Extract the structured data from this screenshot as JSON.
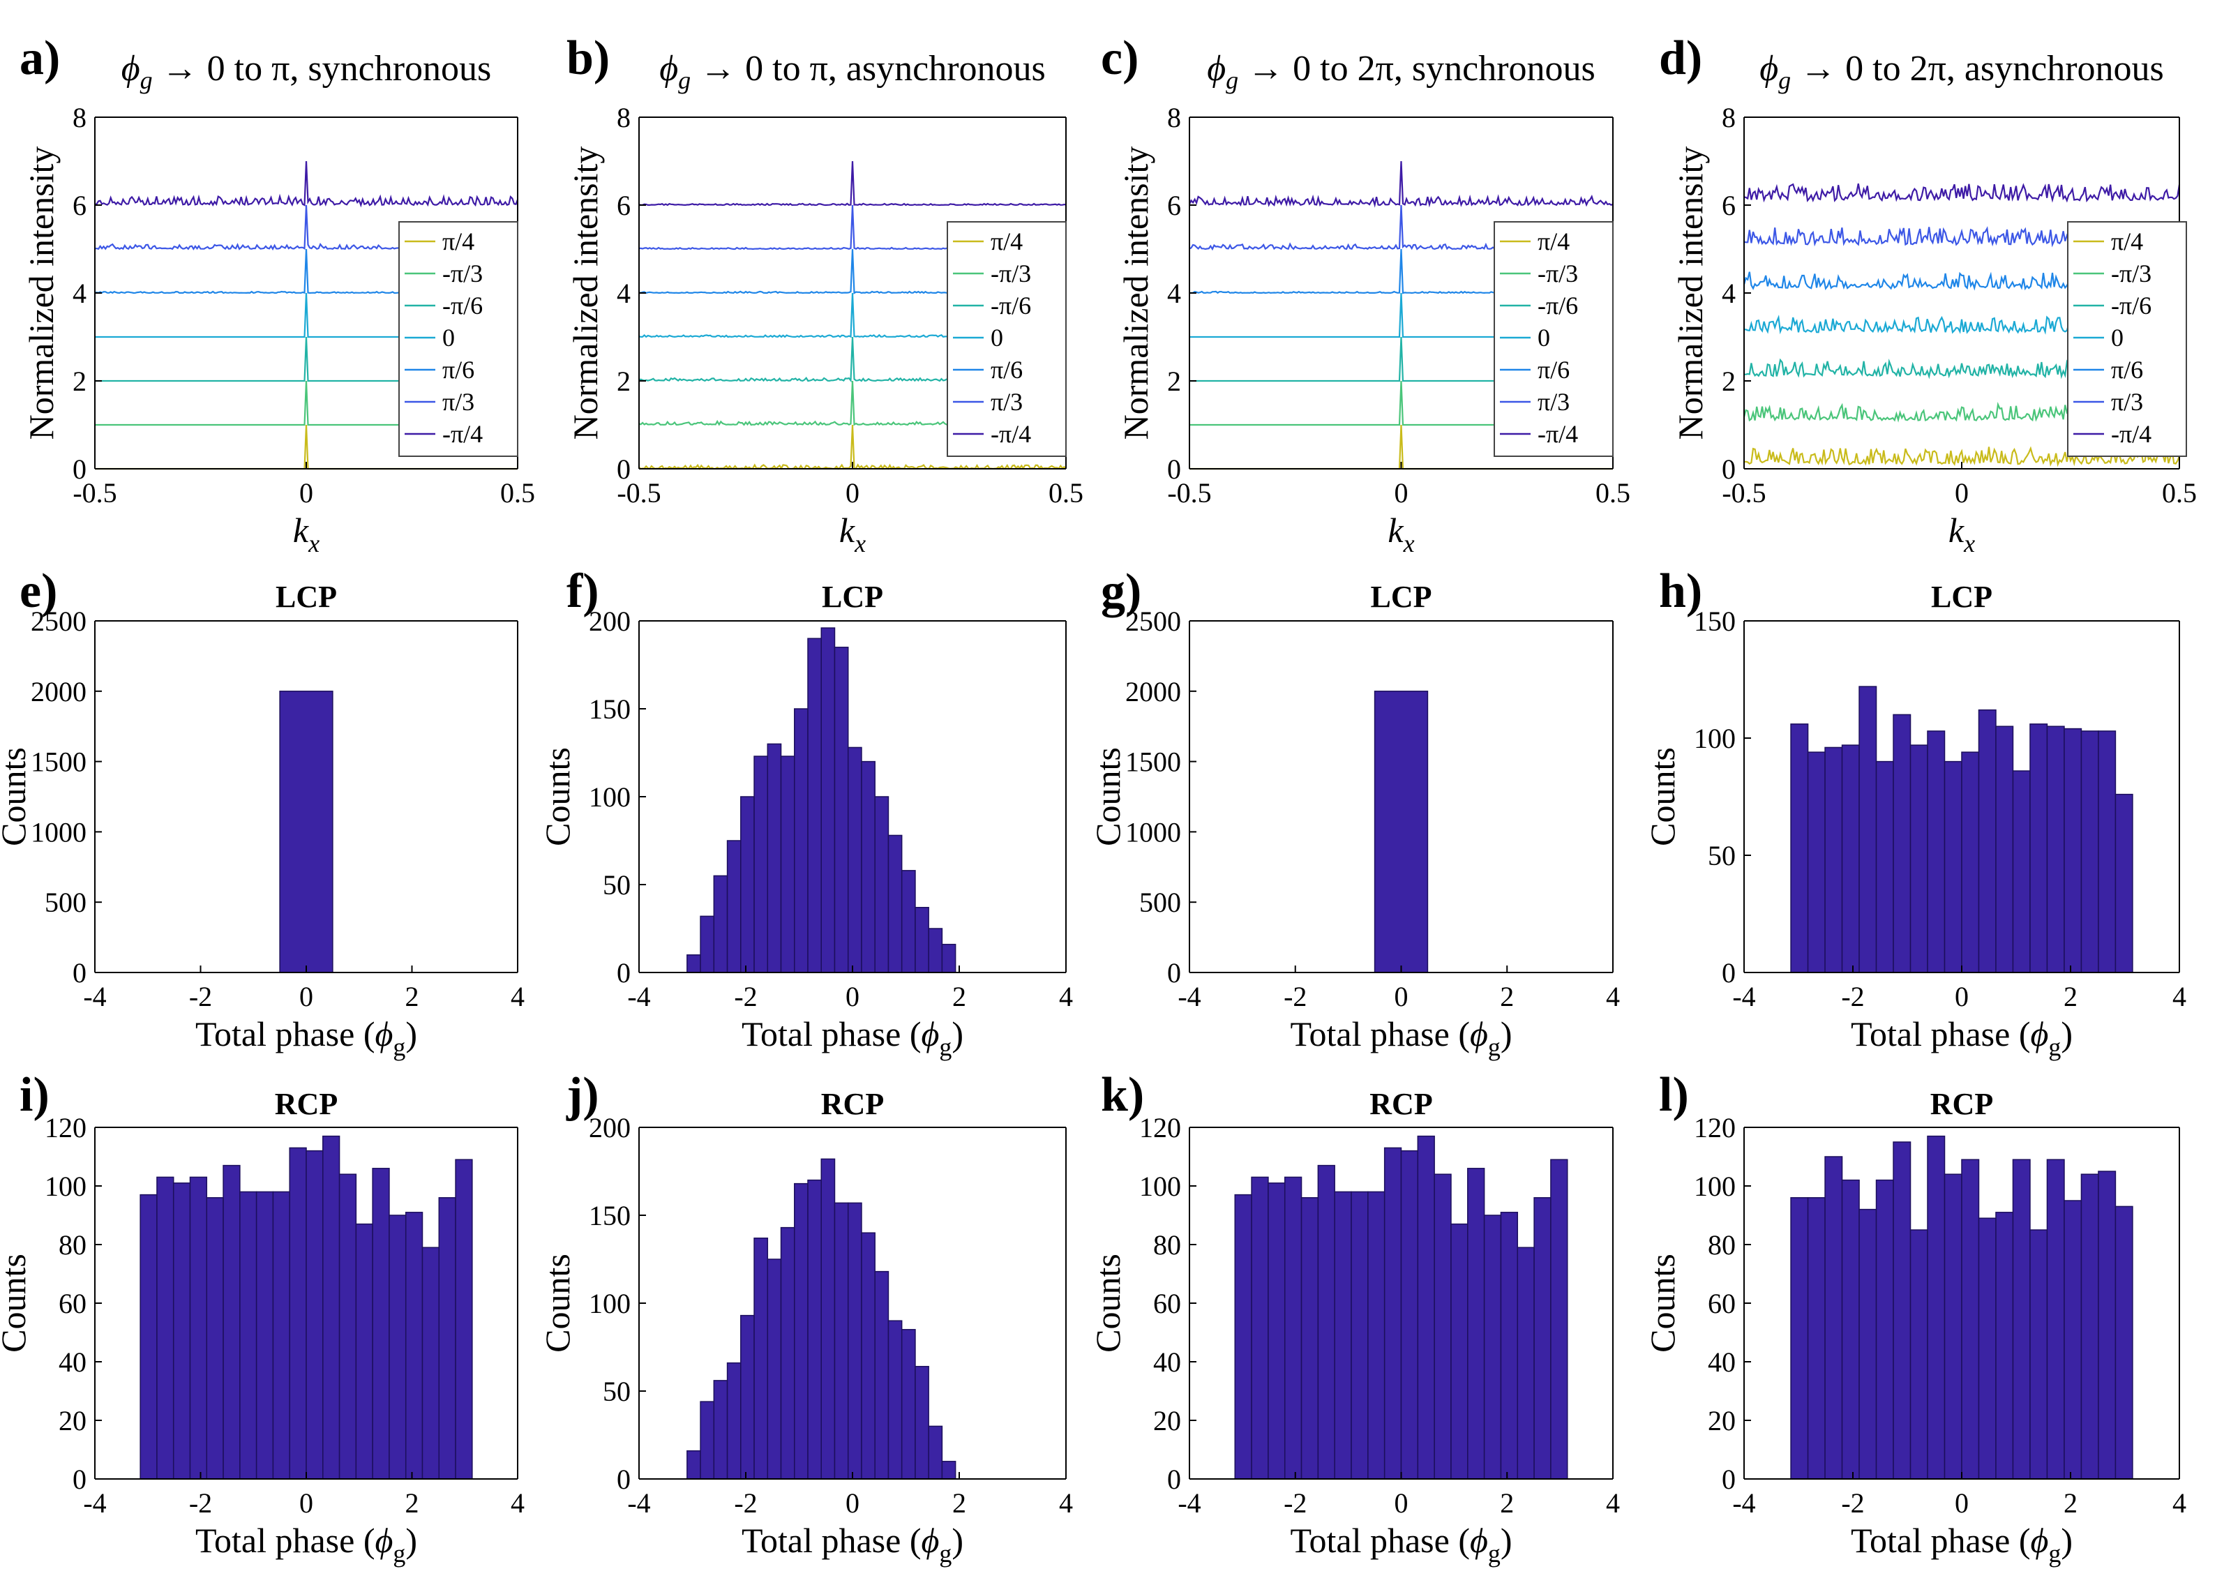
{
  "colors": {
    "bar_fill": "#3b23a3",
    "bar_edge": "#1c0f5c",
    "axis": "#000000",
    "legend_edge": "#444444",
    "series": [
      "#c9bb1b",
      "#4ac57a",
      "#22b3a6",
      "#1ba9d4",
      "#1f86e8",
      "#3c57e6",
      "#3e1ba6"
    ]
  },
  "chart_data": [
    {
      "panel": "a)",
      "type": "line",
      "title": "ϕg → 0 to π, synchronous",
      "title_phi": "ϕ",
      "title_sub": "g",
      "title_rest": " → 0 to π, synchronous",
      "xlabel": "k",
      "xlabel_sub": "x",
      "ylabel": "Normalized intensity",
      "xlim": [
        -0.5,
        0.5
      ],
      "ylim": [
        0,
        8
      ],
      "xticks": [
        -0.5,
        0,
        0.5
      ],
      "xtick_labels": [
        "-0.5",
        "0",
        "0.5"
      ],
      "yticks": [
        0,
        2,
        4,
        6,
        8
      ],
      "ytick_labels": [
        "0",
        "2",
        "4",
        "6",
        "8"
      ],
      "legend": [
        "π/4",
        "-π/3",
        "-π/6",
        "0",
        "π/6",
        "π/3",
        "-π/4"
      ],
      "legend_position": "right",
      "series": [
        {
          "name": "π/4",
          "baseline": 0,
          "peak_height": 1.0,
          "noise": 0.0
        },
        {
          "name": "-π/3",
          "baseline": 1,
          "peak_height": 1.0,
          "noise": 0.0
        },
        {
          "name": "-π/6",
          "baseline": 2,
          "peak_height": 1.0,
          "noise": 0.0
        },
        {
          "name": "0",
          "baseline": 3,
          "peak_height": 1.0,
          "noise": 0.0
        },
        {
          "name": "π/6",
          "baseline": 4,
          "peak_height": 1.0,
          "noise": 0.03
        },
        {
          "name": "π/3",
          "baseline": 5,
          "peak_height": 1.0,
          "noise": 0.1
        },
        {
          "name": "-π/4",
          "baseline": 6,
          "peak_height": 1.0,
          "noise": 0.18
        }
      ]
    },
    {
      "panel": "b)",
      "type": "line",
      "title": "ϕg → 0 to π, asynchronous",
      "title_phi": "ϕ",
      "title_sub": "g",
      "title_rest": " → 0 to π, asynchronous",
      "xlabel": "k",
      "xlabel_sub": "x",
      "ylabel": "Normalized intensity",
      "xlim": [
        -0.5,
        0.5
      ],
      "ylim": [
        0,
        8
      ],
      "xticks": [
        -0.5,
        0,
        0.5
      ],
      "xtick_labels": [
        "-0.5",
        "0",
        "0.5"
      ],
      "yticks": [
        0,
        2,
        4,
        6,
        8
      ],
      "ytick_labels": [
        "0",
        "2",
        "4",
        "6",
        "8"
      ],
      "legend": [
        "π/4",
        "-π/3",
        "-π/6",
        "0",
        "π/6",
        "π/3",
        "-π/4"
      ],
      "legend_position": "right",
      "series": [
        {
          "name": "π/4",
          "baseline": 0,
          "peak_height": 1.0,
          "noise": 0.08
        },
        {
          "name": "-π/3",
          "baseline": 1,
          "peak_height": 1.0,
          "noise": 0.07
        },
        {
          "name": "-π/6",
          "baseline": 2,
          "peak_height": 1.0,
          "noise": 0.06
        },
        {
          "name": "0",
          "baseline": 3,
          "peak_height": 1.0,
          "noise": 0.04
        },
        {
          "name": "π/6",
          "baseline": 4,
          "peak_height": 1.0,
          "noise": 0.03
        },
        {
          "name": "π/3",
          "baseline": 5,
          "peak_height": 1.0,
          "noise": 0.03
        },
        {
          "name": "-π/4",
          "baseline": 6,
          "peak_height": 1.0,
          "noise": 0.03
        }
      ]
    },
    {
      "panel": "c)",
      "type": "line",
      "title": "ϕg → 0 to 2π, synchronous",
      "title_phi": "ϕ",
      "title_sub": "g",
      "title_rest": " → 0 to 2π, synchronous",
      "xlabel": "k",
      "xlabel_sub": "x",
      "ylabel": "Normalized intensity",
      "xlim": [
        -0.5,
        0.5
      ],
      "ylim": [
        0,
        8
      ],
      "xticks": [
        -0.5,
        0,
        0.5
      ],
      "xtick_labels": [
        "-0.5",
        "0",
        "0.5"
      ],
      "yticks": [
        0,
        2,
        4,
        6,
        8
      ],
      "ytick_labels": [
        "0",
        "2",
        "4",
        "6",
        "8"
      ],
      "legend": [
        "π/4",
        "-π/3",
        "-π/6",
        "0",
        "π/6",
        "π/3",
        "-π/4"
      ],
      "legend_position": "right",
      "series": [
        {
          "name": "π/4",
          "baseline": 0,
          "peak_height": 1.0,
          "noise": 0.0
        },
        {
          "name": "-π/3",
          "baseline": 1,
          "peak_height": 1.0,
          "noise": 0.0
        },
        {
          "name": "-π/6",
          "baseline": 2,
          "peak_height": 1.0,
          "noise": 0.0
        },
        {
          "name": "0",
          "baseline": 3,
          "peak_height": 1.0,
          "noise": 0.0
        },
        {
          "name": "π/6",
          "baseline": 4,
          "peak_height": 1.0,
          "noise": 0.03
        },
        {
          "name": "π/3",
          "baseline": 5,
          "peak_height": 1.0,
          "noise": 0.1
        },
        {
          "name": "-π/4",
          "baseline": 6,
          "peak_height": 1.0,
          "noise": 0.18
        }
      ]
    },
    {
      "panel": "d)",
      "type": "line",
      "title": "ϕg → 0 to 2π, asynchronous",
      "title_phi": "ϕ",
      "title_sub": "g",
      "title_rest": " → 0 to 2π, asynchronous",
      "xlabel": "k",
      "xlabel_sub": "x",
      "ylabel": "Normalized intensity",
      "xlim": [
        -0.5,
        0.5
      ],
      "ylim": [
        0,
        8
      ],
      "xticks": [
        -0.5,
        0,
        0.5
      ],
      "xtick_labels": [
        "-0.5",
        "0",
        "0.5"
      ],
      "yticks": [
        0,
        2,
        4,
        6,
        8
      ],
      "ytick_labels": [
        "0",
        "2",
        "4",
        "6",
        "8"
      ],
      "legend": [
        "π/4",
        "-π/3",
        "-π/6",
        "0",
        "π/6",
        "π/3",
        "-π/4"
      ],
      "legend_position": "right",
      "series": [
        {
          "name": "π/4",
          "baseline": 0.1,
          "peak_height": 0.3,
          "noise": 0.35
        },
        {
          "name": "-π/3",
          "baseline": 1.1,
          "peak_height": 0.3,
          "noise": 0.35
        },
        {
          "name": "-π/6",
          "baseline": 2.1,
          "peak_height": 0.3,
          "noise": 0.35
        },
        {
          "name": "0",
          "baseline": 3.1,
          "peak_height": 0.3,
          "noise": 0.35
        },
        {
          "name": "π/6",
          "baseline": 4.1,
          "peak_height": 0.3,
          "noise": 0.35
        },
        {
          "name": "π/3",
          "baseline": 5.1,
          "peak_height": 0.3,
          "noise": 0.35
        },
        {
          "name": "-π/4",
          "baseline": 6.1,
          "peak_height": 0.3,
          "noise": 0.35
        }
      ]
    },
    {
      "panel": "e)",
      "type": "bar",
      "title": "LCP",
      "xlabel": "Total phase (",
      "xlabel_phi": "ϕ",
      "xlabel_sub": "g",
      "xlabel_close": ")",
      "ylabel": "Counts",
      "xlim": [
        -4,
        4
      ],
      "ylim": [
        0,
        2500
      ],
      "xticks": [
        -4,
        -2,
        0,
        2,
        4
      ],
      "xtick_labels": [
        "-4",
        "-2",
        "0",
        "2",
        "4"
      ],
      "yticks": [
        0,
        500,
        1000,
        1500,
        2000,
        2500
      ],
      "ytick_labels": [
        "0",
        "500",
        "1000",
        "1500",
        "2000",
        "2500"
      ],
      "bins": [
        {
          "x0": -0.5,
          "x1": 0.5,
          "count": 2000
        }
      ]
    },
    {
      "panel": "f)",
      "type": "bar",
      "title": "LCP",
      "xlabel": "Total phase (",
      "xlabel_phi": "ϕ",
      "xlabel_sub": "g",
      "xlabel_close": ")",
      "ylabel": "Counts",
      "xlim": [
        -4,
        4
      ],
      "ylim": [
        0,
        200
      ],
      "xticks": [
        -4,
        -2,
        0,
        2,
        4
      ],
      "xtick_labels": [
        "-4",
        "-2",
        "0",
        "2",
        "4"
      ],
      "yticks": [
        0,
        50,
        100,
        150,
        200
      ],
      "ytick_labels": [
        "0",
        "50",
        "100",
        "150",
        "200"
      ],
      "bin_start": -3.1,
      "bin_width": 0.2515,
      "counts": [
        10,
        32,
        55,
        75,
        100,
        123,
        130,
        123,
        150,
        190,
        196,
        185,
        128,
        120,
        100,
        78,
        58,
        37,
        25,
        16
      ]
    },
    {
      "panel": "g)",
      "type": "bar",
      "title": "LCP",
      "xlabel": "Total phase (",
      "xlabel_phi": "ϕ",
      "xlabel_sub": "g",
      "xlabel_close": ")",
      "ylabel": "Counts",
      "xlim": [
        -4,
        4
      ],
      "ylim": [
        0,
        2500
      ],
      "xticks": [
        -4,
        -2,
        0,
        2,
        4
      ],
      "xtick_labels": [
        "-4",
        "-2",
        "0",
        "2",
        "4"
      ],
      "yticks": [
        0,
        500,
        1000,
        1500,
        2000,
        2500
      ],
      "ytick_labels": [
        "0",
        "500",
        "1000",
        "1500",
        "2000",
        "2500"
      ],
      "bins": [
        {
          "x0": -0.5,
          "x1": 0.5,
          "count": 2000
        }
      ]
    },
    {
      "panel": "h)",
      "type": "bar",
      "title": "LCP",
      "xlabel": "Total phase (",
      "xlabel_phi": "ϕ",
      "xlabel_sub": "g",
      "xlabel_close": ")",
      "ylabel": "Counts",
      "xlim": [
        -4,
        4
      ],
      "ylim": [
        0,
        150
      ],
      "xticks": [
        -4,
        -2,
        0,
        2,
        4
      ],
      "xtick_labels": [
        "-4",
        "-2",
        "0",
        "2",
        "4"
      ],
      "yticks": [
        0,
        50,
        100,
        150
      ],
      "ytick_labels": [
        "0",
        "50",
        "100",
        "150"
      ],
      "bin_start": -3.14,
      "bin_width": 0.314,
      "counts": [
        106,
        94,
        96,
        97,
        122,
        90,
        110,
        97,
        103,
        90,
        94,
        112,
        105,
        86,
        106,
        105,
        104,
        103,
        103,
        76
      ]
    },
    {
      "panel": "i)",
      "type": "bar",
      "title": "RCP",
      "xlabel": "Total phase (",
      "xlabel_phi": "ϕ",
      "xlabel_sub": "g",
      "xlabel_close": ")",
      "ylabel": "Counts",
      "xlim": [
        -4,
        4
      ],
      "ylim": [
        0,
        120
      ],
      "xticks": [
        -4,
        -2,
        0,
        2,
        4
      ],
      "xtick_labels": [
        "-4",
        "-2",
        "0",
        "2",
        "4"
      ],
      "yticks": [
        0,
        20,
        40,
        60,
        80,
        100,
        120
      ],
      "ytick_labels": [
        "0",
        "20",
        "40",
        "60",
        "80",
        "100",
        "120"
      ],
      "bin_start": -3.14,
      "bin_width": 0.314,
      "counts": [
        97,
        103,
        101,
        103,
        96,
        107,
        98,
        98,
        98,
        113,
        112,
        117,
        104,
        87,
        106,
        90,
        91,
        79,
        96,
        109
      ]
    },
    {
      "panel": "j)",
      "type": "bar",
      "title": "RCP",
      "xlabel": "Total phase (",
      "xlabel_phi": "ϕ",
      "xlabel_sub": "g",
      "xlabel_close": ")",
      "ylabel": "Counts",
      "xlim": [
        -4,
        4
      ],
      "ylim": [
        0,
        200
      ],
      "xticks": [
        -4,
        -2,
        0,
        2,
        4
      ],
      "xtick_labels": [
        "-4",
        "-2",
        "0",
        "2",
        "4"
      ],
      "yticks": [
        0,
        50,
        100,
        150,
        200
      ],
      "ytick_labels": [
        "0",
        "50",
        "100",
        "150",
        "200"
      ],
      "bin_start": -3.1,
      "bin_width": 0.2515,
      "counts": [
        16,
        44,
        56,
        66,
        93,
        137,
        125,
        143,
        168,
        170,
        182,
        157,
        157,
        140,
        118,
        90,
        85,
        64,
        30,
        10
      ]
    },
    {
      "panel": "k)",
      "type": "bar",
      "title": "RCP",
      "xlabel": "Total phase (",
      "xlabel_phi": "ϕ",
      "xlabel_sub": "g",
      "xlabel_close": ")",
      "ylabel": "Counts",
      "xlim": [
        -4,
        4
      ],
      "ylim": [
        0,
        120
      ],
      "xticks": [
        -4,
        -2,
        0,
        2,
        4
      ],
      "xtick_labels": [
        "-4",
        "-2",
        "0",
        "2",
        "4"
      ],
      "yticks": [
        0,
        20,
        40,
        60,
        80,
        100,
        120
      ],
      "ytick_labels": [
        "0",
        "20",
        "40",
        "60",
        "80",
        "100",
        "120"
      ],
      "bin_start": -3.14,
      "bin_width": 0.314,
      "counts": [
        97,
        103,
        101,
        103,
        96,
        107,
        98,
        98,
        98,
        113,
        112,
        117,
        104,
        87,
        106,
        90,
        91,
        79,
        96,
        109
      ]
    },
    {
      "panel": "l)",
      "type": "bar",
      "title": "RCP",
      "xlabel": "Total phase (",
      "xlabel_phi": "ϕ",
      "xlabel_sub": "g",
      "xlabel_close": ")",
      "ylabel": "Counts",
      "xlim": [
        -4,
        4
      ],
      "ylim": [
        0,
        120
      ],
      "xticks": [
        -4,
        -2,
        0,
        2,
        4
      ],
      "xtick_labels": [
        "-4",
        "-2",
        "0",
        "2",
        "4"
      ],
      "yticks": [
        0,
        20,
        40,
        60,
        80,
        100,
        120
      ],
      "ytick_labels": [
        "0",
        "20",
        "40",
        "60",
        "80",
        "100",
        "120"
      ],
      "bin_start": -3.14,
      "bin_width": 0.314,
      "counts": [
        96,
        96,
        110,
        102,
        92,
        102,
        115,
        85,
        117,
        104,
        109,
        89,
        91,
        109,
        85,
        109,
        95,
        104,
        105,
        93
      ]
    }
  ]
}
